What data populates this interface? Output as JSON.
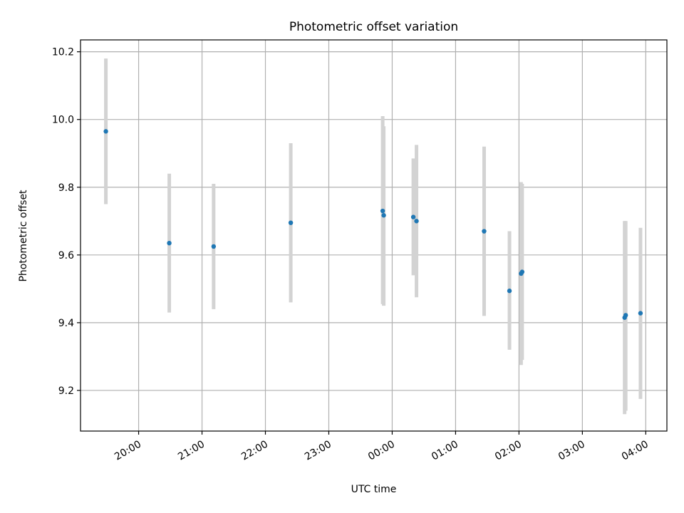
{
  "chart_data": {
    "type": "scatter",
    "title": "Photometric offset variation",
    "xlabel": "UTC time",
    "ylabel": "Photometric offset",
    "x_is_time": true,
    "xlim": [
      "19:05",
      "04:20"
    ],
    "ylim": [
      9.08,
      10.235
    ],
    "x_ticks": [
      "20:00",
      "21:00",
      "22:00",
      "23:00",
      "00:00",
      "01:00",
      "02:00",
      "03:00",
      "04:00"
    ],
    "y_ticks": [
      "9.2",
      "9.4",
      "9.6",
      "9.8",
      "10.0",
      "10.2"
    ],
    "grid": true,
    "point_color": "#1f77b4",
    "errorbar_color": "#d3d3d3",
    "points": [
      {
        "x": "19:29",
        "y": 9.965,
        "ylow": 9.75,
        "yhigh": 10.18
      },
      {
        "x": "20:29",
        "y": 9.635,
        "ylow": 9.43,
        "yhigh": 9.84
      },
      {
        "x": "21:11",
        "y": 9.625,
        "ylow": 9.44,
        "yhigh": 9.81
      },
      {
        "x": "22:24",
        "y": 9.695,
        "ylow": 9.46,
        "yhigh": 9.93
      },
      {
        "x": "23:51",
        "y": 9.73,
        "ylow": 9.455,
        "yhigh": 10.01
      },
      {
        "x": "23:52",
        "y": 9.717,
        "ylow": 9.45,
        "yhigh": 9.98
      },
      {
        "x": "00:20",
        "y": 9.712,
        "ylow": 9.54,
        "yhigh": 9.885
      },
      {
        "x": "00:23",
        "y": 9.7,
        "ylow": 9.475,
        "yhigh": 9.925
      },
      {
        "x": "01:27",
        "y": 9.67,
        "ylow": 9.42,
        "yhigh": 9.92
      },
      {
        "x": "01:51",
        "y": 9.494,
        "ylow": 9.32,
        "yhigh": 9.67
      },
      {
        "x": "02:02",
        "y": 9.545,
        "ylow": 9.275,
        "yhigh": 9.815
      },
      {
        "x": "02:03",
        "y": 9.55,
        "ylow": 9.29,
        "yhigh": 9.81
      },
      {
        "x": "03:40",
        "y": 9.415,
        "ylow": 9.13,
        "yhigh": 9.7
      },
      {
        "x": "03:41",
        "y": 9.422,
        "ylow": 9.14,
        "yhigh": 9.7
      },
      {
        "x": "03:55",
        "y": 9.428,
        "ylow": 9.175,
        "yhigh": 9.68
      }
    ]
  }
}
